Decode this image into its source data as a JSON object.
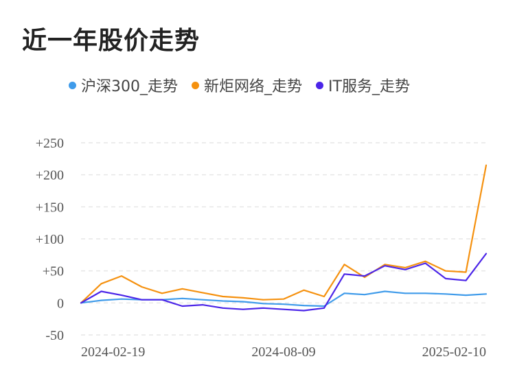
{
  "page": {
    "title": "近一年股价走势"
  },
  "chart_data": {
    "type": "line",
    "title": "近一年股价走势",
    "xlabel": "",
    "ylabel": "",
    "ylim": [
      -50,
      250
    ],
    "yticks": [
      {
        "value": 250,
        "label": "+250"
      },
      {
        "value": 200,
        "label": "+200"
      },
      {
        "value": 150,
        "label": "+150"
      },
      {
        "value": 100,
        "label": "+100"
      },
      {
        "value": 50,
        "label": "+50"
      },
      {
        "value": 0,
        "label": "0"
      },
      {
        "value": -50,
        "label": "-50"
      }
    ],
    "xticks": [
      "2024-02-19",
      "2024-08-09",
      "2025-02-10"
    ],
    "xtick_at_index": [
      0,
      10,
      20
    ],
    "grid": true,
    "legend_position": "top",
    "x": [
      "2024-02-19",
      "2024-03-08",
      "2024-03-26",
      "2024-04-13",
      "2024-05-01",
      "2024-05-19",
      "2024-06-06",
      "2024-06-24",
      "2024-07-12",
      "2024-07-30",
      "2024-08-09",
      "2024-08-27",
      "2024-09-14",
      "2024-10-02",
      "2024-10-20",
      "2024-11-07",
      "2024-11-25",
      "2024-12-13",
      "2024-12-31",
      "2025-01-18",
      "2025-02-10"
    ],
    "series": [
      {
        "name": "沪深300_走势",
        "color": "#3f9bea",
        "values": [
          0,
          4,
          6,
          5,
          5,
          7,
          5,
          3,
          2,
          -1,
          -2,
          -4,
          -5,
          15,
          13,
          18,
          15,
          15,
          14,
          12,
          14
        ]
      },
      {
        "name": "新炬网络_走势",
        "color": "#f5910f",
        "values": [
          0,
          30,
          42,
          25,
          15,
          22,
          16,
          10,
          8,
          5,
          6,
          20,
          10,
          60,
          40,
          60,
          55,
          65,
          50,
          48,
          215
        ]
      },
      {
        "name": "IT服务_走势",
        "color": "#4b25e8",
        "values": [
          0,
          18,
          12,
          5,
          5,
          -5,
          -3,
          -8,
          -10,
          -8,
          -10,
          -12,
          -8,
          45,
          42,
          58,
          52,
          62,
          38,
          35,
          77
        ]
      }
    ]
  }
}
